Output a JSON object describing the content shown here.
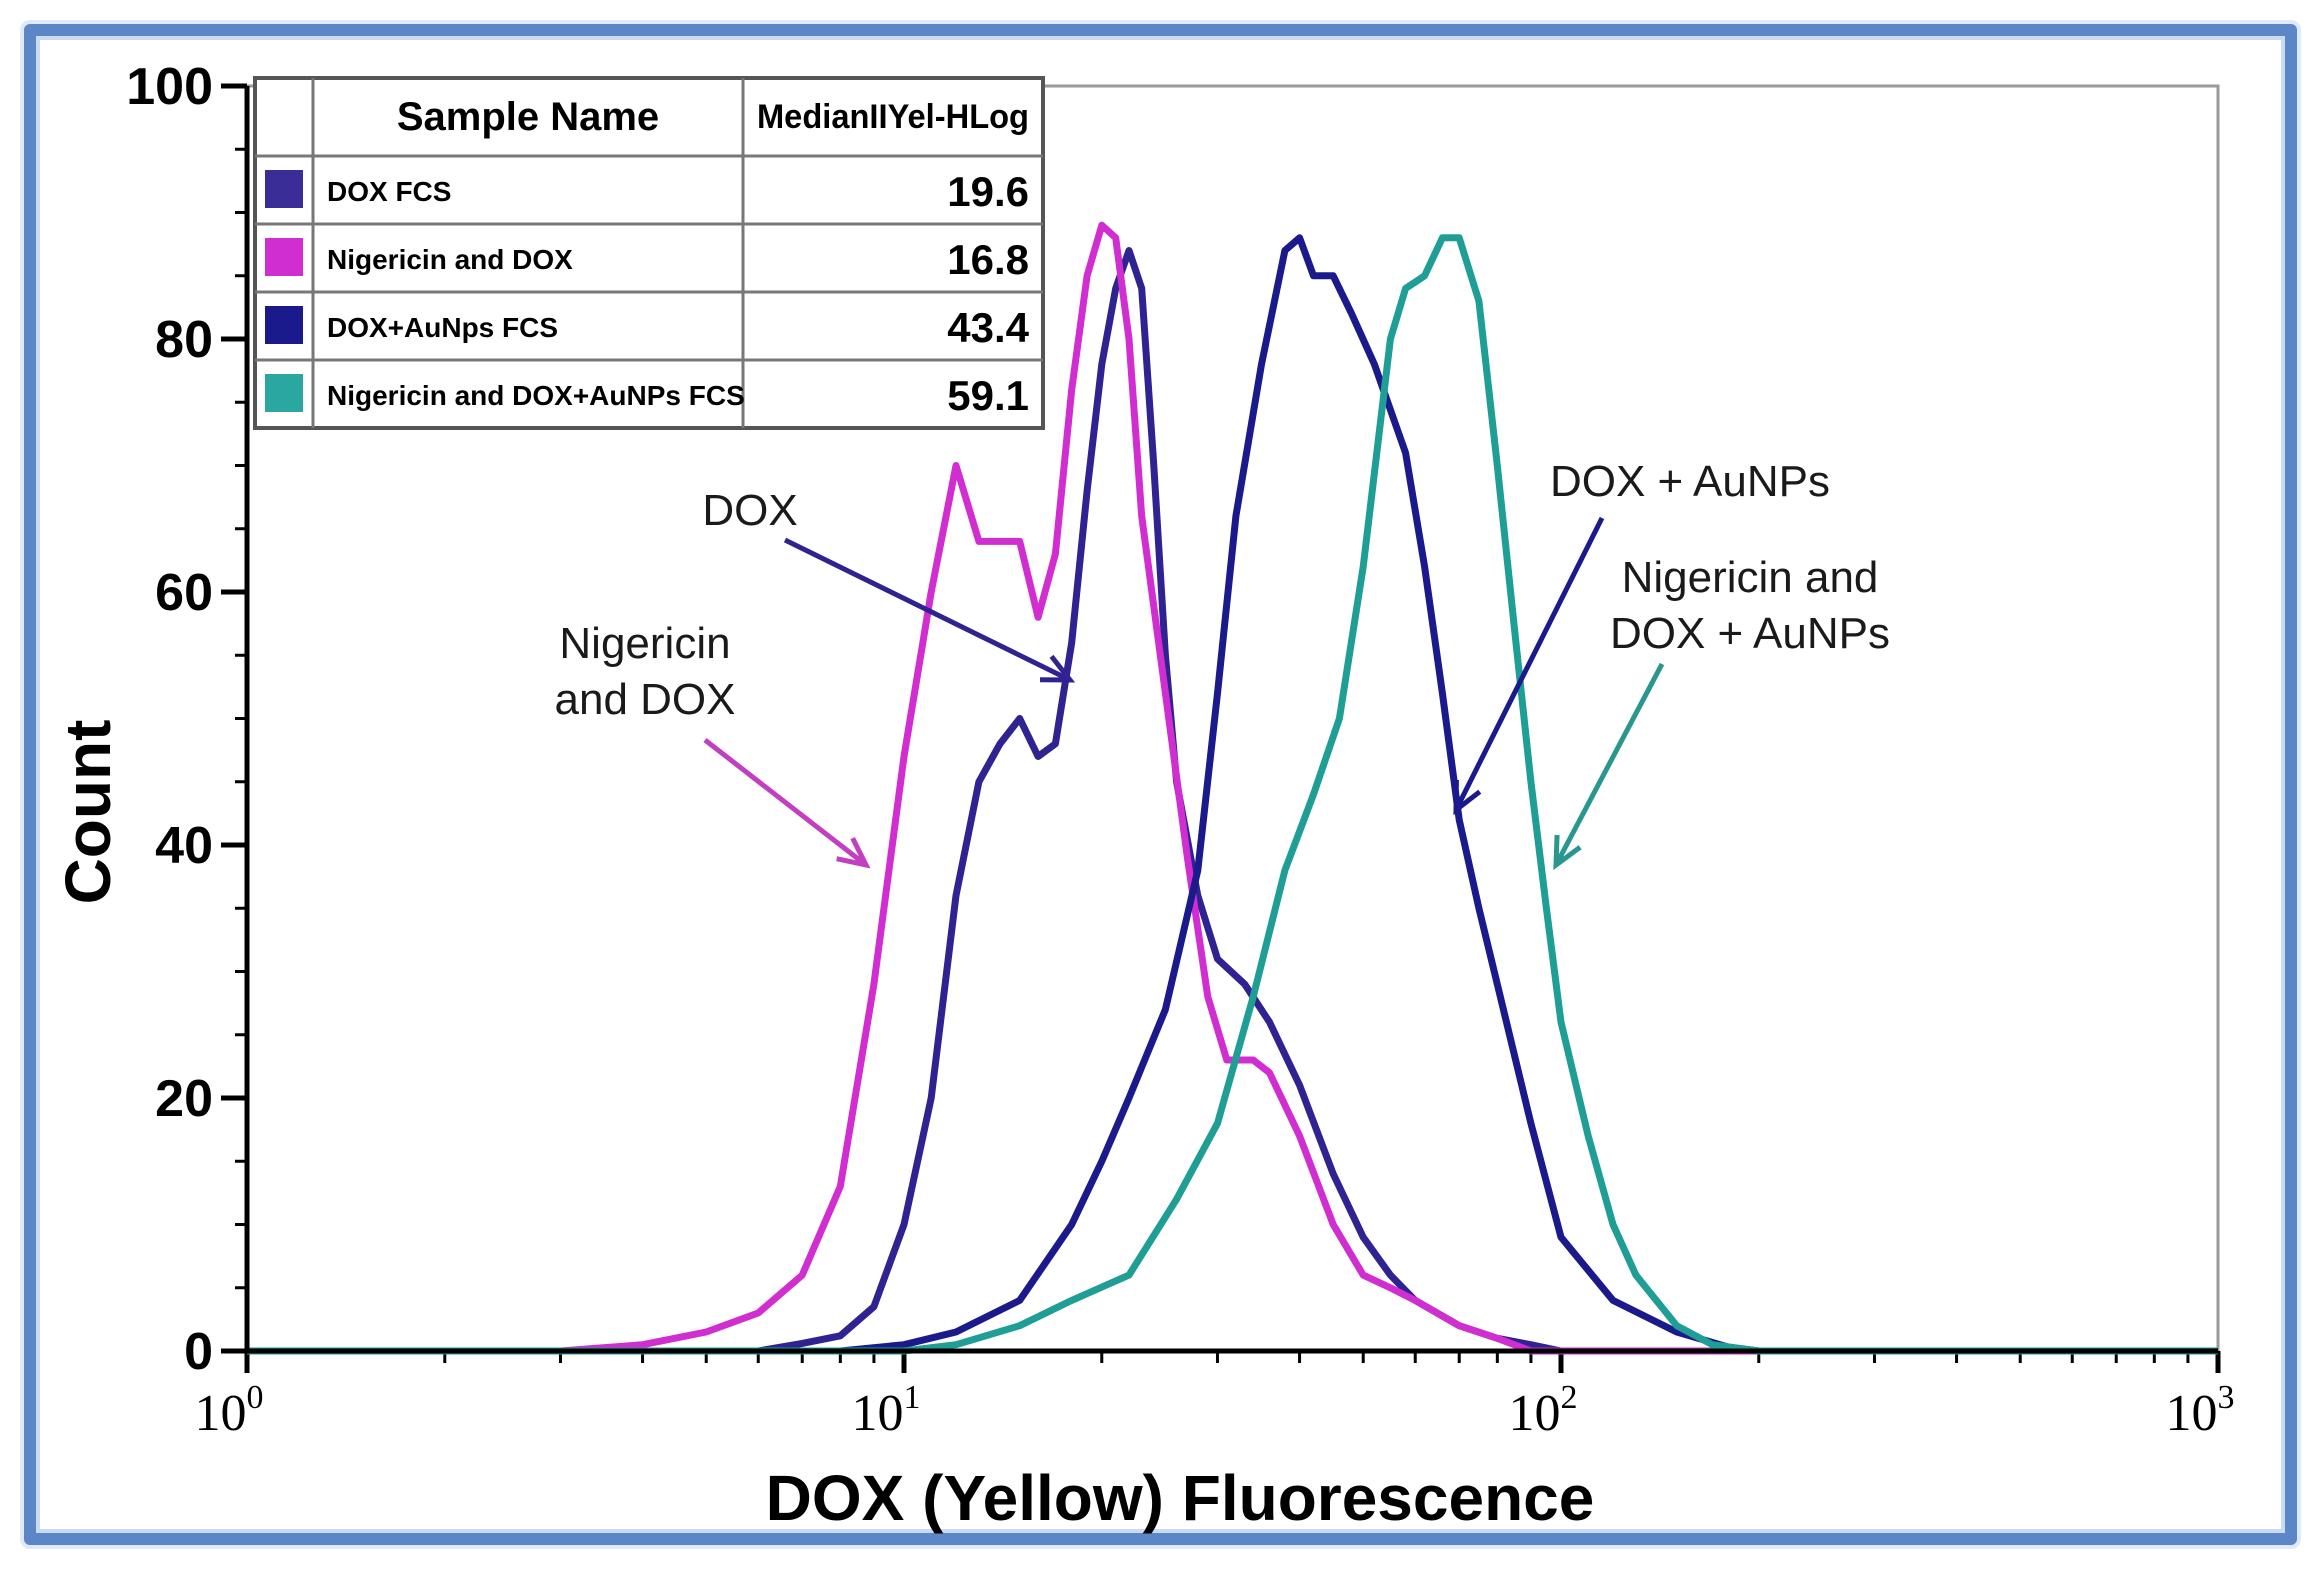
{
  "chart_data": {
    "type": "line",
    "x_scale": "log",
    "xlim": [
      1,
      1000
    ],
    "ylim": [
      0,
      100
    ],
    "xlabel": "DOX (Yellow) Fluorescence",
    "ylabel": "Count",
    "y_ticks": [
      "0",
      "20",
      "40",
      "60",
      "80",
      "100"
    ],
    "x_ticks": [
      {
        "base": "10",
        "exp": "0",
        "value": 1
      },
      {
        "base": "10",
        "exp": "1",
        "value": 10
      },
      {
        "base": "10",
        "exp": "2",
        "value": 100
      },
      {
        "base": "10",
        "exp": "3",
        "value": 1000
      }
    ],
    "legend_table": {
      "header_name": "Sample Name",
      "header_value": "MedianIIYel-HLog",
      "rows": [
        {
          "name": "DOX FCS",
          "value": "19.6",
          "color": "#3b2d97"
        },
        {
          "name": "Nigericin and DOX",
          "value": "16.8",
          "color": "#d12ed1"
        },
        {
          "name": "DOX+AuNps FCS",
          "value": "43.4",
          "color": "#1a1a8c"
        },
        {
          "name": "Nigericin and DOX+AuNPs FCS",
          "value": "59.1",
          "color": "#2aa7a0"
        }
      ]
    },
    "series": [
      {
        "name": "DOX FCS",
        "color": "#2e2390",
        "points": [
          [
            1,
            0
          ],
          [
            6,
            0
          ],
          [
            7,
            0.6
          ],
          [
            8,
            1.2
          ],
          [
            9,
            3.5
          ],
          [
            10,
            10
          ],
          [
            11,
            20
          ],
          [
            12,
            36
          ],
          [
            13,
            45
          ],
          [
            14,
            48
          ],
          [
            15,
            50
          ],
          [
            16,
            47
          ],
          [
            17,
            48
          ],
          [
            18,
            56
          ],
          [
            19,
            68
          ],
          [
            20,
            78
          ],
          [
            21,
            84
          ],
          [
            22,
            87
          ],
          [
            23,
            84
          ],
          [
            24,
            70
          ],
          [
            25,
            55
          ],
          [
            26,
            45
          ],
          [
            28,
            36
          ],
          [
            30,
            31
          ],
          [
            33,
            29
          ],
          [
            36,
            26
          ],
          [
            40,
            21
          ],
          [
            45,
            14
          ],
          [
            50,
            9
          ],
          [
            55,
            6
          ],
          [
            60,
            4
          ],
          [
            70,
            2
          ],
          [
            80,
            1
          ],
          [
            90,
            0.5
          ],
          [
            100,
            0
          ],
          [
            1000,
            0
          ]
        ]
      },
      {
        "name": "Nigericin and DOX",
        "color": "#d12ed1",
        "points": [
          [
            1,
            0
          ],
          [
            3,
            0
          ],
          [
            4,
            0.5
          ],
          [
            5,
            1.5
          ],
          [
            6,
            3
          ],
          [
            7,
            6
          ],
          [
            8,
            13
          ],
          [
            9,
            29
          ],
          [
            10,
            47
          ],
          [
            11,
            60
          ],
          [
            12,
            70
          ],
          [
            13,
            64
          ],
          [
            14,
            64
          ],
          [
            15,
            64
          ],
          [
            16,
            58
          ],
          [
            17,
            63
          ],
          [
            18,
            76
          ],
          [
            19,
            85
          ],
          [
            20,
            89
          ],
          [
            21,
            88
          ],
          [
            22,
            80
          ],
          [
            23,
            66
          ],
          [
            25,
            52
          ],
          [
            27,
            39
          ],
          [
            29,
            28
          ],
          [
            31,
            23
          ],
          [
            34,
            23
          ],
          [
            36,
            22
          ],
          [
            40,
            17
          ],
          [
            45,
            10
          ],
          [
            50,
            6
          ],
          [
            55,
            5
          ],
          [
            60,
            4
          ],
          [
            70,
            2
          ],
          [
            80,
            1
          ],
          [
            90,
            0
          ],
          [
            1000,
            0
          ]
        ]
      },
      {
        "name": "DOX+AuNps FCS",
        "color": "#1a1a8c",
        "points": [
          [
            1,
            0
          ],
          [
            8,
            0
          ],
          [
            10,
            0.5
          ],
          [
            12,
            1.5
          ],
          [
            15,
            4
          ],
          [
            18,
            10
          ],
          [
            20,
            15
          ],
          [
            22,
            20
          ],
          [
            25,
            27
          ],
          [
            28,
            38
          ],
          [
            30,
            52
          ],
          [
            32,
            66
          ],
          [
            35,
            78
          ],
          [
            38,
            87
          ],
          [
            40,
            88
          ],
          [
            42,
            85
          ],
          [
            45,
            85
          ],
          [
            48,
            82
          ],
          [
            52,
            78
          ],
          [
            58,
            71
          ],
          [
            62,
            62
          ],
          [
            66,
            52
          ],
          [
            70,
            42
          ],
          [
            75,
            35
          ],
          [
            80,
            29
          ],
          [
            90,
            18
          ],
          [
            100,
            9
          ],
          [
            120,
            4
          ],
          [
            150,
            1.5
          ],
          [
            180,
            0.3
          ],
          [
            200,
            0
          ],
          [
            1000,
            0
          ]
        ]
      },
      {
        "name": "Nigericin and DOX+AuNPs FCS",
        "color": "#1f9e96",
        "points": [
          [
            1,
            0
          ],
          [
            10,
            0
          ],
          [
            12,
            0.5
          ],
          [
            15,
            2
          ],
          [
            18,
            4
          ],
          [
            22,
            6
          ],
          [
            26,
            12
          ],
          [
            30,
            18
          ],
          [
            34,
            28
          ],
          [
            38,
            38
          ],
          [
            42,
            44
          ],
          [
            46,
            50
          ],
          [
            50,
            62
          ],
          [
            55,
            80
          ],
          [
            58,
            84
          ],
          [
            62,
            85
          ],
          [
            66,
            88
          ],
          [
            70,
            88
          ],
          [
            75,
            83
          ],
          [
            80,
            70
          ],
          [
            85,
            57
          ],
          [
            90,
            45
          ],
          [
            95,
            35
          ],
          [
            100,
            26
          ],
          [
            110,
            17
          ],
          [
            120,
            10
          ],
          [
            130,
            6
          ],
          [
            150,
            2
          ],
          [
            170,
            0.5
          ],
          [
            200,
            0
          ],
          [
            1000,
            0
          ]
        ]
      }
    ],
    "annotations": [
      {
        "lines": [
          "DOX"
        ],
        "color": "#2e2390"
      },
      {
        "lines": [
          "Nigericin",
          "and DOX"
        ],
        "color": "#c23fc2"
      },
      {
        "lines": [
          "DOX + AuNPs"
        ],
        "color": "#1a1a8c"
      },
      {
        "lines": [
          "Nigericin and",
          "DOX + AuNPs"
        ],
        "color": "#2a9690"
      }
    ]
  }
}
